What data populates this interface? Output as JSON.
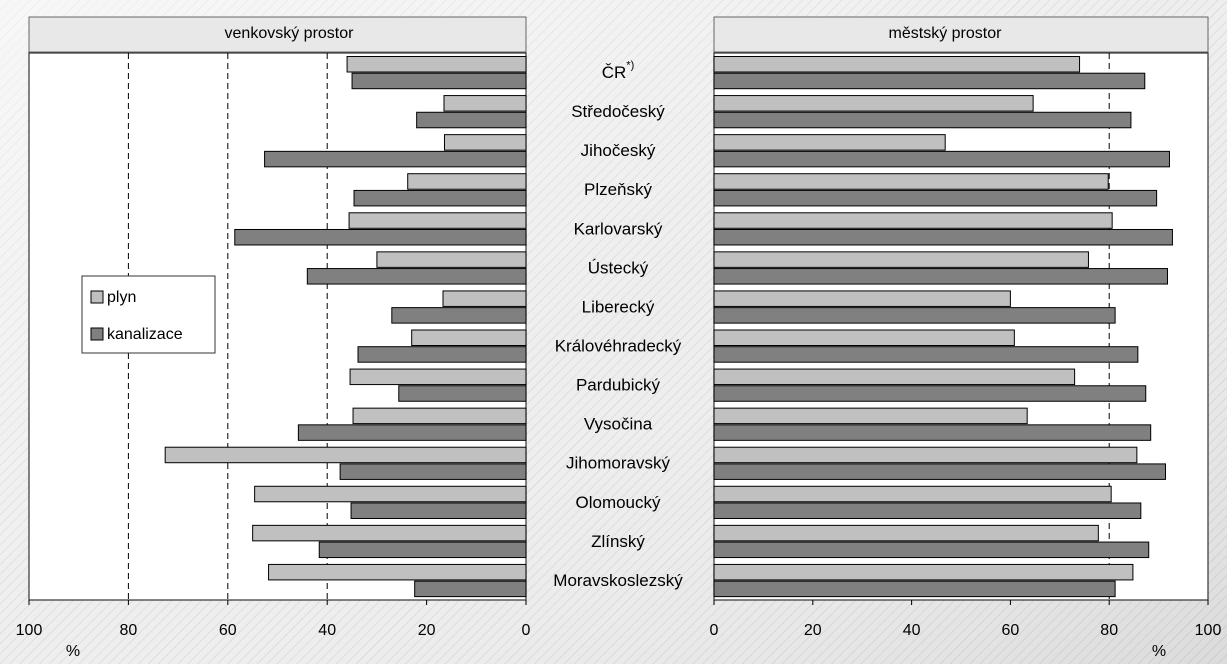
{
  "chart_data": {
    "type": "bar",
    "orientation": "horizontal",
    "categories": [
      "ČR",
      "Středočeský",
      "Jihočeský",
      "Plzeňský",
      "Karlovarský",
      "Ústecký",
      "Liberecký",
      "Královéhradecký",
      "Pardubický",
      "Vysočina",
      "Jihomoravský",
      "Olomoucký",
      "Zlínský",
      "Moravskoslezský"
    ],
    "first_category_superscript": "*)",
    "legend": {
      "position": "left-middle",
      "entries": [
        {
          "label": "plyn",
          "color": "#c0c0c0"
        },
        {
          "label": "kanalizace",
          "color": "#808080"
        }
      ]
    },
    "panels": [
      {
        "title": "venkovský prostor",
        "xlabel": "%",
        "xlim": [
          0,
          100
        ],
        "x_reversed": true,
        "ticks": [
          "0",
          "20",
          "40",
          "60",
          "80",
          "100"
        ],
        "gridlines": [
          40,
          60,
          80
        ],
        "series": [
          {
            "name": "plyn",
            "values": [
              36.0,
              16.5,
              16.4,
              23.8,
              35.6,
              30.0,
              16.7,
              23.0,
              35.4,
              34.8,
              72.6,
              54.6,
              55.0,
              51.8
            ]
          },
          {
            "name": "kanalizace",
            "values": [
              35.0,
              22.0,
              52.6,
              34.6,
              58.6,
              44.0,
              27.0,
              33.8,
              25.6,
              45.8,
              37.4,
              35.2,
              41.6,
              22.4
            ]
          }
        ]
      },
      {
        "title": "městský prostor",
        "xlabel": "%",
        "xlim": [
          0,
          100
        ],
        "x_reversed": false,
        "ticks": [
          "0",
          "20",
          "40",
          "60",
          "80",
          "100"
        ],
        "gridlines": [
          80
        ],
        "series": [
          {
            "name": "plyn",
            "values": [
              74.0,
              64.6,
              46.8,
              79.8,
              80.6,
              75.8,
              60.0,
              60.8,
              73.0,
              63.4,
              85.6,
              80.4,
              77.8,
              84.8
            ]
          },
          {
            "name": "kanalizace",
            "values": [
              87.2,
              84.4,
              92.2,
              89.6,
              92.8,
              91.8,
              81.2,
              85.8,
              87.4,
              88.4,
              91.4,
              86.4,
              88.0,
              81.2
            ]
          }
        ]
      }
    ]
  }
}
